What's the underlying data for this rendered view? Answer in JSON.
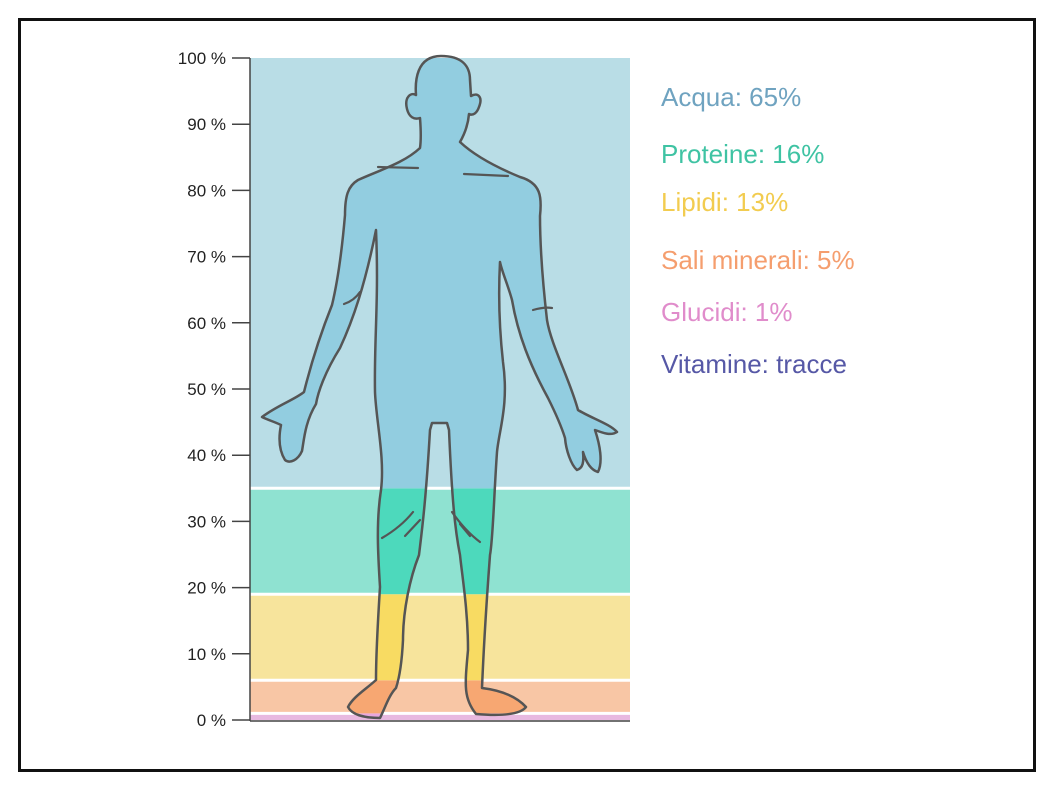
{
  "chart_data": {
    "type": "bar",
    "title": "",
    "xlabel": "",
    "ylabel": "",
    "ylim": [
      0,
      100
    ],
    "y_tick_labels": [
      "0 %",
      "10 %",
      "20 %",
      "30 %",
      "40 %",
      "50 %",
      "60 %",
      "70 %",
      "80 %",
      "90 %",
      "100 %"
    ],
    "series": [
      {
        "name": "Acqua",
        "value": 65,
        "label": "Acqua: 65%",
        "color": "#6fa3c0",
        "band_color": "#b9dde6",
        "fill_color": "#92cde0"
      },
      {
        "name": "Proteine",
        "value": 16,
        "label": "Proteine: 16%",
        "color": "#3fc3a3",
        "band_color": "#8fe2d1",
        "fill_color": "#4dd9bc"
      },
      {
        "name": "Lipidi",
        "value": 13,
        "label": "Lipidi: 13%",
        "color": "#f2cc50",
        "band_color": "#f7e49c",
        "fill_color": "#f8db62"
      },
      {
        "name": "Sali minerali",
        "value": 5,
        "label": "Sali minerali: 5%",
        "color": "#f59e6e",
        "band_color": "#f8c6a5",
        "fill_color": "#f7a772"
      },
      {
        "name": "Glucidi",
        "value": 1,
        "label": "Glucidi: 1%",
        "color": "#e08ccb",
        "band_color": "#e8b9e0",
        "fill_color": "#e8a7dd"
      },
      {
        "name": "Vitamine",
        "value": 0,
        "label": "Vitamine: tracce",
        "color": "#5658a6",
        "band_color": "#d6d7ef",
        "fill_color": "#b9bbe0"
      }
    ],
    "grid": false,
    "legend": "right"
  }
}
